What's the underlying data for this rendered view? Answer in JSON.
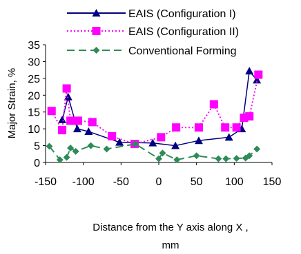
{
  "chart_data": {
    "type": "line",
    "title": "",
    "xlabel": "Distance from the Y axis along X , mm",
    "ylabel": "Major Strain, %",
    "xlim": [
      -150,
      150
    ],
    "ylim": [
      0,
      35
    ],
    "xticks": [
      "-150",
      "-100",
      "-50",
      "0",
      "50",
      "100",
      "150"
    ],
    "yticks": [
      "0",
      "5",
      "10",
      "15",
      "20",
      "25",
      "30",
      "35"
    ],
    "grid": false,
    "legend_position": "top",
    "series": [
      {
        "name": "EAIS (Configuration I)",
        "color": "#000080",
        "line_style": "solid",
        "marker": "triangle",
        "points": [
          {
            "x": -128,
            "y": 12.7
          },
          {
            "x": -120,
            "y": 19.5
          },
          {
            "x": -108,
            "y": 10.0
          },
          {
            "x": -93,
            "y": 9.2
          },
          {
            "x": -52,
            "y": 6.0
          },
          {
            "x": -8,
            "y": 5.8
          },
          {
            "x": 22,
            "y": 5.0
          },
          {
            "x": 53,
            "y": 6.5
          },
          {
            "x": 93,
            "y": 7.5
          },
          {
            "x": 110,
            "y": 10.0
          },
          {
            "x": 120,
            "y": 27.2
          },
          {
            "x": 130,
            "y": 24.5
          }
        ]
      },
      {
        "name": "EAIS (Configuration II)",
        "color": "#ff00ff",
        "line_style": "dotted",
        "marker": "square",
        "points": [
          {
            "x": -142,
            "y": 15.3
          },
          {
            "x": -128,
            "y": 9.6
          },
          {
            "x": -122,
            "y": 22.0
          },
          {
            "x": -117,
            "y": 12.4
          },
          {
            "x": -107,
            "y": 12.4
          },
          {
            "x": -88,
            "y": 12.0
          },
          {
            "x": -62,
            "y": 7.8
          },
          {
            "x": -32,
            "y": 5.5
          },
          {
            "x": 3,
            "y": 7.5
          },
          {
            "x": 23,
            "y": 10.4
          },
          {
            "x": 53,
            "y": 10.4
          },
          {
            "x": 73,
            "y": 17.3
          },
          {
            "x": 88,
            "y": 10.4
          },
          {
            "x": 103,
            "y": 10.4
          },
          {
            "x": 113,
            "y": 13.3
          },
          {
            "x": 120,
            "y": 13.7
          },
          {
            "x": 132,
            "y": 26.1
          }
        ]
      },
      {
        "name": "Conventional Forming",
        "color": "#2e8b57",
        "line_style": "dashed",
        "marker": "diamond",
        "points": [
          {
            "x": -145,
            "y": 4.8
          },
          {
            "x": -131,
            "y": 0.8
          },
          {
            "x": -122,
            "y": 1.5
          },
          {
            "x": -117,
            "y": 4.3
          },
          {
            "x": -110,
            "y": 3.3
          },
          {
            "x": -90,
            "y": 5.0
          },
          {
            "x": -69,
            "y": 4.0
          },
          {
            "x": -31,
            "y": 5.5
          },
          {
            "x": 0,
            "y": 1.1
          },
          {
            "x": 5,
            "y": 2.8
          },
          {
            "x": 24,
            "y": 0.8
          },
          {
            "x": 50,
            "y": 2.0
          },
          {
            "x": 79,
            "y": 1.1
          },
          {
            "x": 89,
            "y": 1.1
          },
          {
            "x": 103,
            "y": 1.2
          },
          {
            "x": 115,
            "y": 1.3
          },
          {
            "x": 120,
            "y": 2.0
          },
          {
            "x": 130,
            "y": 4.0
          }
        ]
      }
    ]
  }
}
